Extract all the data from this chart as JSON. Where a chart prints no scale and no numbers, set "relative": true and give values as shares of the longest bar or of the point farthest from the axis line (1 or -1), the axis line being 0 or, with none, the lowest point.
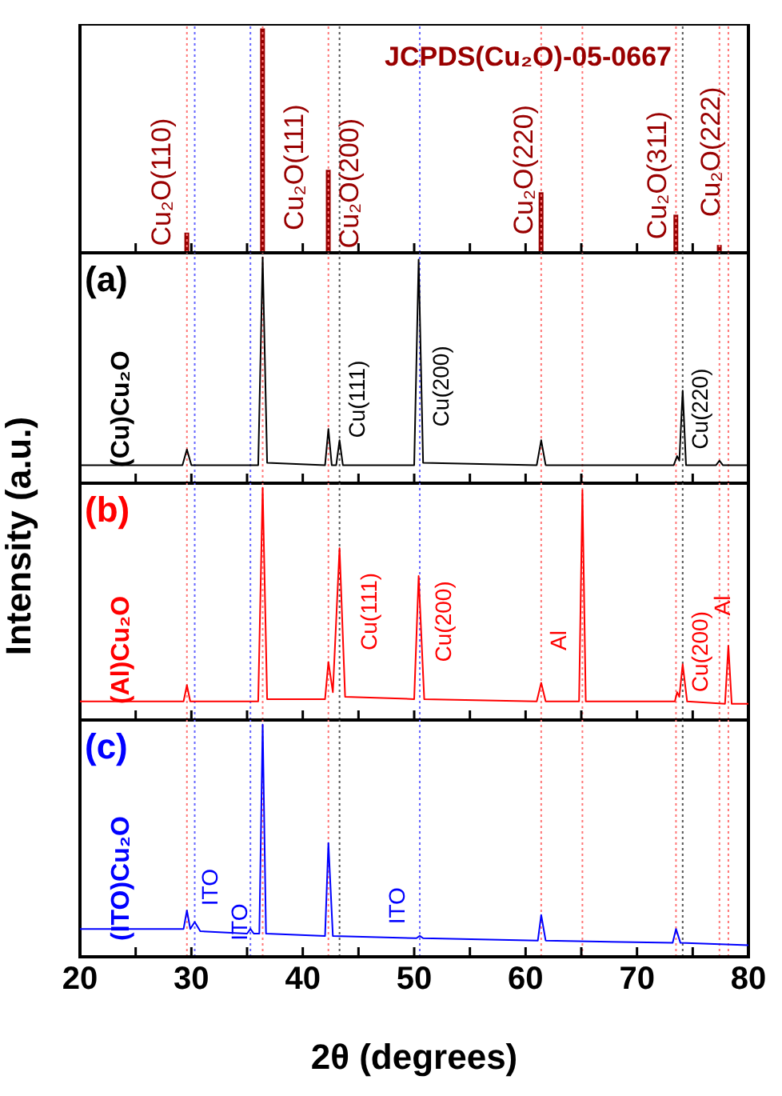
{
  "chart_data": [
    {
      "type": "bar",
      "title": "JCPDS(Cu₂O)-05-0667",
      "relative": true,
      "tick_labels": false,
      "xlim": [
        20,
        80
      ],
      "xticks": [
        20,
        {
          "value": 25,
          "label": null
        },
        30,
        {
          "value": 35,
          "label": null
        },
        40,
        {
          "value": 45,
          "label": null
        },
        50,
        {
          "value": 55,
          "label": null
        },
        60,
        {
          "value": 65,
          "label": null
        },
        70,
        {
          "value": 75,
          "label": null
        },
        80
      ],
      "x": [
        29.6,
        36.4,
        42.3,
        52.5,
        61.4,
        69.6,
        73.5,
        77.4
      ],
      "series": [
        {
          "color": "#990000",
          "values": [
            0.09,
            1,
            0.37,
            null,
            0.27,
            null,
            0.17,
            0.035
          ]
        }
      ],
      "annotations": [
        "Cu₂O(110)",
        "Cu₂O(111)",
        "Cu₂O(200)",
        "Cu₂O(220)",
        "Cu₂O(311)",
        "Cu₂O(222)"
      ],
      "ref_lines": [
        {
          "axis": "x",
          "value": 29.6,
          "color": "#ff7777",
          "line_style": "dotted"
        },
        {
          "axis": "x",
          "value": 36.4,
          "color": "#ff7777",
          "line_style": "dotted"
        },
        {
          "axis": "x",
          "value": 42.3,
          "color": "#ff7777",
          "line_style": "dotted"
        },
        {
          "axis": "x",
          "value": 61.4,
          "color": "#ff7777",
          "line_style": "dotted"
        },
        {
          "axis": "x",
          "value": 65.1,
          "color": "#ff7777",
          "line_style": "dotted"
        },
        {
          "axis": "x",
          "value": 73.5,
          "color": "#ff7777",
          "line_style": "dotted"
        },
        {
          "axis": "x",
          "value": 77.4,
          "color": "#ff7777",
          "line_style": "dotted"
        },
        {
          "axis": "x",
          "value": 78.2,
          "color": "#ff7777",
          "line_style": "dotted"
        },
        {
          "axis": "x",
          "value": 30.3,
          "color": "#6666ff",
          "line_style": "dotted"
        },
        {
          "axis": "x",
          "value": 35.3,
          "color": "#6666ff",
          "line_style": "dotted"
        },
        {
          "axis": "x",
          "value": 50.5,
          "color": "#6666ff",
          "line_style": "dotted"
        },
        {
          "axis": "x",
          "value": 43.3,
          "color": "#555555",
          "line_style": "dotted"
        },
        {
          "axis": "x",
          "value": 74.1,
          "color": "#555555",
          "line_style": "dotted"
        }
      ]
    },
    {
      "type": "line",
      "title": "(a)",
      "relative": true,
      "tick_labels": false,
      "xlim": [
        20,
        80
      ],
      "xticks": [
        20,
        {
          "value": 25,
          "label": null
        },
        30,
        {
          "value": 35,
          "label": null
        },
        40,
        {
          "value": 45,
          "label": null
        },
        50,
        {
          "value": 55,
          "label": null
        },
        60,
        {
          "value": 65,
          "label": null
        },
        70,
        {
          "value": 75,
          "label": null
        },
        80
      ],
      "x": [
        20,
        29.2,
        29.6,
        30.0,
        36.0,
        36.4,
        36.8,
        42.0,
        42.3,
        42.6,
        43.0,
        43.3,
        43.6,
        50.0,
        50.4,
        50.8,
        61.0,
        61.4,
        61.8,
        73.3,
        73.6,
        73.8,
        74.1,
        74.4,
        77.1,
        77.4,
        77.7,
        80
      ],
      "series": [
        {
          "name": "(Cu)Cu₂O",
          "color": "#000000",
          "values": [
            0.08,
            0.08,
            0.15,
            0.08,
            0.08,
            1,
            0.09,
            0.08,
            0.24,
            0.08,
            0.08,
            0.19,
            0.08,
            0.08,
            0.99,
            0.09,
            0.08,
            0.19,
            0.08,
            0.08,
            0.12,
            0.1,
            0.41,
            0.08,
            0.08,
            0.1,
            0.08,
            0.08
          ]
        }
      ],
      "annotations": [
        "Cu(111)",
        "Cu(200)",
        "Cu(220)"
      ],
      "ref_lines": [
        {
          "axis": "x",
          "value": 29.6,
          "color": "#ff7777",
          "line_style": "dotted"
        },
        {
          "axis": "x",
          "value": 36.4,
          "color": "#ff7777",
          "line_style": "dotted"
        },
        {
          "axis": "x",
          "value": 42.3,
          "color": "#ff7777",
          "line_style": "dotted"
        },
        {
          "axis": "x",
          "value": 61.4,
          "color": "#ff7777",
          "line_style": "dotted"
        },
        {
          "axis": "x",
          "value": 65.1,
          "color": "#ff7777",
          "line_style": "dotted"
        },
        {
          "axis": "x",
          "value": 73.5,
          "color": "#ff7777",
          "line_style": "dotted"
        },
        {
          "axis": "x",
          "value": 77.4,
          "color": "#ff7777",
          "line_style": "dotted"
        },
        {
          "axis": "x",
          "value": 78.2,
          "color": "#ff7777",
          "line_style": "dotted"
        },
        {
          "axis": "x",
          "value": 30.3,
          "color": "#6666ff",
          "line_style": "dotted"
        },
        {
          "axis": "x",
          "value": 35.3,
          "color": "#6666ff",
          "line_style": "dotted"
        },
        {
          "axis": "x",
          "value": 50.5,
          "color": "#6666ff",
          "line_style": "dotted"
        },
        {
          "axis": "x",
          "value": 43.3,
          "color": "#555555",
          "line_style": "dotted"
        },
        {
          "axis": "x",
          "value": 74.1,
          "color": "#555555",
          "line_style": "dotted"
        }
      ]
    },
    {
      "type": "line",
      "title": "(b)",
      "ylabel": "Intensity (a.u.)",
      "relative": true,
      "tick_labels": false,
      "xlim": [
        20,
        80
      ],
      "xticks": [
        20,
        {
          "value": 25,
          "label": null
        },
        30,
        {
          "value": 35,
          "label": null
        },
        40,
        {
          "value": 45,
          "label": null
        },
        50,
        {
          "value": 55,
          "label": null
        },
        60,
        {
          "value": 65,
          "label": null
        },
        70,
        {
          "value": 75,
          "label": null
        },
        80
      ],
      "x": [
        20,
        29.3,
        29.6,
        29.9,
        36.0,
        36.4,
        36.8,
        42.0,
        42.3,
        42.7,
        43.3,
        43.8,
        50.0,
        50.4,
        50.9,
        61.0,
        61.4,
        61.8,
        64.8,
        65.1,
        65.4,
        73.4,
        73.6,
        73.8,
        74.1,
        74.5,
        77.9,
        78.2,
        78.5,
        80
      ],
      "series": [
        {
          "name": "(Al)Cu₂O",
          "color": "#ff0000",
          "values": [
            0.08,
            0.08,
            0.15,
            0.08,
            0.08,
            1,
            0.09,
            0.09,
            0.25,
            0.12,
            0.74,
            0.1,
            0.09,
            0.62,
            0.09,
            0.08,
            0.16,
            0.08,
            0.08,
            0.99,
            0.08,
            0.08,
            0.12,
            0.1,
            0.24,
            0.08,
            0.07,
            0.32,
            0.07,
            0.07
          ]
        }
      ],
      "annotations": [
        "Cu(111)",
        "Cu(200)",
        "Al",
        "Cu(200)",
        "Al"
      ],
      "ref_lines": [
        {
          "axis": "x",
          "value": 29.6,
          "color": "#ff7777",
          "line_style": "dotted"
        },
        {
          "axis": "x",
          "value": 36.4,
          "color": "#ff7777",
          "line_style": "dotted"
        },
        {
          "axis": "x",
          "value": 42.3,
          "color": "#ff7777",
          "line_style": "dotted"
        },
        {
          "axis": "x",
          "value": 61.4,
          "color": "#ff7777",
          "line_style": "dotted"
        },
        {
          "axis": "x",
          "value": 65.1,
          "color": "#ff7777",
          "line_style": "dotted"
        },
        {
          "axis": "x",
          "value": 73.5,
          "color": "#ff7777",
          "line_style": "dotted"
        },
        {
          "axis": "x",
          "value": 77.4,
          "color": "#ff7777",
          "line_style": "dotted"
        },
        {
          "axis": "x",
          "value": 78.2,
          "color": "#ff7777",
          "line_style": "dotted"
        },
        {
          "axis": "x",
          "value": 30.3,
          "color": "#6666ff",
          "line_style": "dotted"
        },
        {
          "axis": "x",
          "value": 35.3,
          "color": "#6666ff",
          "line_style": "dotted"
        },
        {
          "axis": "x",
          "value": 50.5,
          "color": "#6666ff",
          "line_style": "dotted"
        },
        {
          "axis": "x",
          "value": 43.3,
          "color": "#555555",
          "line_style": "dotted"
        },
        {
          "axis": "x",
          "value": 74.1,
          "color": "#555555",
          "line_style": "dotted"
        }
      ]
    },
    {
      "type": "line",
      "title": "(c)",
      "xlabel": "2θ (degrees)",
      "relative": true,
      "tick_labels": "x",
      "xlim": [
        20,
        80
      ],
      "xticks": [
        20,
        {
          "value": 25,
          "label": null
        },
        30,
        {
          "value": 35,
          "label": null
        },
        40,
        {
          "value": 45,
          "label": null
        },
        50,
        {
          "value": 55,
          "label": null
        },
        60,
        {
          "value": 65,
          "label": null
        },
        70,
        {
          "value": 75,
          "label": null
        },
        80
      ],
      "x": [
        20,
        29.3,
        29.6,
        29.9,
        30.3,
        30.8,
        35.0,
        35.3,
        35.6,
        36.1,
        36.4,
        36.7,
        42.0,
        42.3,
        42.7,
        50.2,
        50.5,
        50.8,
        61.1,
        61.4,
        61.8,
        73.2,
        73.5,
        73.9,
        80
      ],
      "series": [
        {
          "name": "(ITO)Cu₂O",
          "color": "#0000ff",
          "values": [
            0.12,
            0.12,
            0.2,
            0.12,
            0.15,
            0.11,
            0.1,
            0.12,
            0.1,
            0.1,
            1,
            0.1,
            0.09,
            0.49,
            0.09,
            0.08,
            0.09,
            0.08,
            0.07,
            0.18,
            0.07,
            0.06,
            0.12,
            0.06,
            0.05
          ]
        }
      ],
      "annotations": [
        "ITO",
        "ITO",
        "ITO"
      ],
      "ref_lines": [
        {
          "axis": "x",
          "value": 29.6,
          "color": "#ff7777",
          "line_style": "dotted"
        },
        {
          "axis": "x",
          "value": 36.4,
          "color": "#ff7777",
          "line_style": "dotted"
        },
        {
          "axis": "x",
          "value": 42.3,
          "color": "#ff7777",
          "line_style": "dotted"
        },
        {
          "axis": "x",
          "value": 61.4,
          "color": "#ff7777",
          "line_style": "dotted"
        },
        {
          "axis": "x",
          "value": 65.1,
          "color": "#ff7777",
          "line_style": "dotted"
        },
        {
          "axis": "x",
          "value": 73.5,
          "color": "#ff7777",
          "line_style": "dotted"
        },
        {
          "axis": "x",
          "value": 77.4,
          "color": "#ff7777",
          "line_style": "dotted"
        },
        {
          "axis": "x",
          "value": 78.2,
          "color": "#ff7777",
          "line_style": "dotted"
        },
        {
          "axis": "x",
          "value": 30.3,
          "color": "#6666ff",
          "line_style": "dotted"
        },
        {
          "axis": "x",
          "value": 35.3,
          "color": "#6666ff",
          "line_style": "dotted"
        },
        {
          "axis": "x",
          "value": 50.5,
          "color": "#6666ff",
          "line_style": "dotted"
        },
        {
          "axis": "x",
          "value": 43.3,
          "color": "#555555",
          "line_style": "dotted"
        },
        {
          "axis": "x",
          "value": 74.1,
          "color": "#555555",
          "line_style": "dotted"
        }
      ]
    }
  ]
}
